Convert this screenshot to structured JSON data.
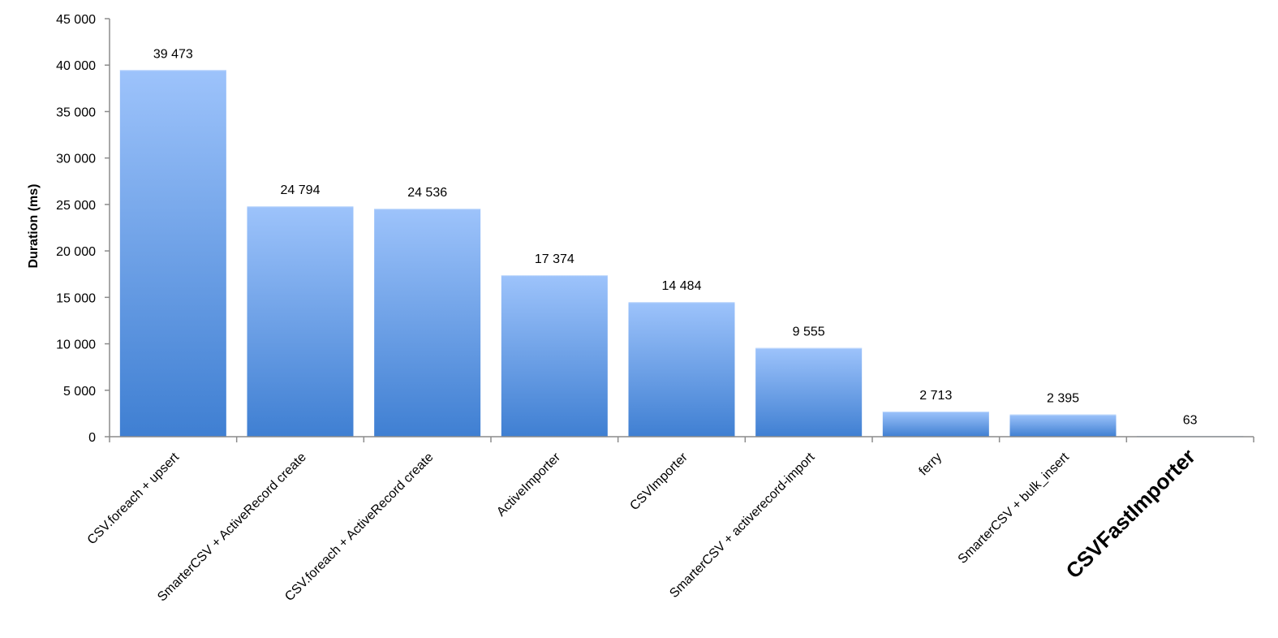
{
  "chart_data": {
    "type": "bar",
    "title": "",
    "xlabel": "",
    "ylabel": "Duration (ms)",
    "ylim": [
      0,
      45000
    ],
    "yticks": [
      0,
      5000,
      10000,
      15000,
      20000,
      25000,
      30000,
      35000,
      40000,
      45000
    ],
    "ytick_labels": [
      "0",
      "5 000",
      "10 000",
      "15 000",
      "20 000",
      "25 000",
      "30 000",
      "35 000",
      "40 000",
      "45 000"
    ],
    "categories": [
      "CSV.foreach + upsert",
      "SmarterCSV + ActiveRecord create",
      "CSV.foreach + ActiveRecord create",
      "ActiveImporter",
      "CSVImporter",
      "SmarterCSV + activerecord-import",
      "ferry",
      "SmarterCSV + bulk_insert",
      "CSVFastImporter"
    ],
    "values": [
      39473,
      24794,
      24536,
      17374,
      14484,
      9555,
      2713,
      2395,
      63
    ],
    "value_labels": [
      "39 473",
      "24 794",
      "24 536",
      "17 374",
      "14 484",
      "9 555",
      "2 713",
      "2 395",
      "63"
    ],
    "highlighted_category": "CSVFastImporter",
    "grid": false,
    "legend": "none",
    "colors": {
      "bar_top": "#9dc3fb",
      "bar_bottom": "#3f7fd2",
      "axis": "#8c8c8c"
    }
  }
}
